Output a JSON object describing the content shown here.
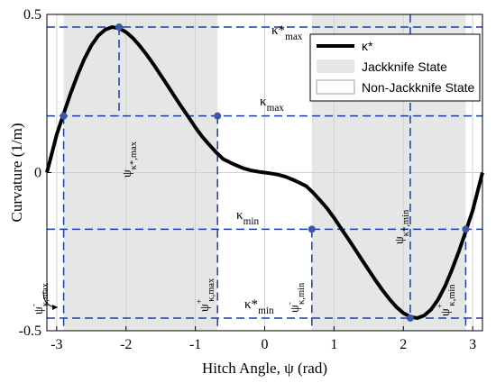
{
  "chart_data": {
    "type": "line",
    "xlabel": "Hitch Angle, ψ (rad)",
    "ylabel": "Curvature (1/m)",
    "xlim": [
      -3.14159,
      3.14159
    ],
    "ylim": [
      -0.5,
      0.5
    ],
    "xticks": [
      -3,
      -2,
      -1,
      0,
      1,
      2,
      3
    ],
    "xtick_labels": [
      "-3",
      "-2",
      "-1",
      "0",
      "1",
      "2",
      "3"
    ],
    "yticks": [
      -0.5,
      0,
      0.5
    ],
    "ytick_labels": [
      "-0.5",
      "0",
      "0.5"
    ],
    "grid": true,
    "legend_position": "top-right",
    "legend": {
      "curve": "κ*",
      "jackknife": "Jackknife State",
      "nonjackknife": "Non-Jackknife State"
    },
    "series": [
      {
        "name": "κ*",
        "x": [
          -3.14159,
          -3.0,
          -2.9,
          -2.8,
          -2.7,
          -2.6,
          -2.5,
          -2.4,
          -2.3,
          -2.2,
          -2.1,
          -2.0,
          -1.9,
          -1.8,
          -1.7,
          -1.6,
          -1.5,
          -1.4,
          -1.3,
          -1.2,
          -1.1,
          -1.0,
          -0.9,
          -0.8,
          -0.7,
          -0.6,
          -0.5,
          -0.4,
          -0.3,
          -0.2,
          -0.1,
          0.0,
          0.1,
          0.2,
          0.3,
          0.4,
          0.5,
          0.6,
          0.7,
          0.8,
          0.9,
          1.0,
          1.1,
          1.2,
          1.3,
          1.4,
          1.5,
          1.6,
          1.7,
          1.8,
          1.9,
          2.0,
          2.1,
          2.2,
          2.3,
          2.4,
          2.5,
          2.6,
          2.7,
          2.8,
          2.9,
          3.0,
          3.14159
        ],
        "y": [
          0.0,
          0.12,
          0.186,
          0.25,
          0.308,
          0.36,
          0.402,
          0.433,
          0.452,
          0.46,
          0.456,
          0.444,
          0.425,
          0.4,
          0.372,
          0.341,
          0.308,
          0.275,
          0.241,
          0.208,
          0.176,
          0.143,
          0.113,
          0.088,
          0.064,
          0.043,
          0.032,
          0.022,
          0.013,
          0.007,
          0.003,
          0.0,
          -0.003,
          -0.007,
          -0.013,
          -0.022,
          -0.032,
          -0.043,
          -0.064,
          -0.088,
          -0.113,
          -0.143,
          -0.176,
          -0.208,
          -0.241,
          -0.275,
          -0.308,
          -0.341,
          -0.372,
          -0.4,
          -0.425,
          -0.444,
          -0.456,
          -0.46,
          -0.452,
          -0.433,
          -0.402,
          -0.36,
          -0.308,
          -0.25,
          -0.186,
          -0.12,
          0.0
        ]
      }
    ],
    "jackknife_regions": [
      [
        -2.9,
        -0.68
      ],
      [
        0.68,
        2.9
      ]
    ],
    "reference_lines": {
      "kappa_star_max": 0.46,
      "kappa_max": 0.179,
      "kappa_min": -0.179,
      "kappa_star_min": -0.46,
      "psi_minus_kappa_max": -2.9,
      "psi_kappa_star_max": -2.1,
      "psi_plus_kappa_max": -0.68,
      "psi_minus_kappa_min": 0.68,
      "psi_kappa_star_min": 2.1,
      "psi_plus_kappa_min": 2.9
    },
    "annotations": {
      "kappa_star_max": {
        "base": "κ*",
        "sub": "max"
      },
      "kappa_max": {
        "base": "κ",
        "sub": "max"
      },
      "kappa_min": {
        "base": "κ",
        "sub": "min"
      },
      "kappa_star_min": {
        "base": "κ*",
        "sub": "min"
      },
      "psi_minus_kappa_max": {
        "base": "ψ",
        "sup": "-",
        "sub": "κ,max"
      },
      "psi_kappa_star_max": {
        "base": "ψ",
        "sub": "κ*,max"
      },
      "psi_plus_kappa_max": {
        "base": "ψ",
        "sup": "+",
        "sub": "κ,max"
      },
      "psi_minus_kappa_min": {
        "base": "ψ",
        "sup": "-",
        "sub": "κ,min"
      },
      "psi_kappa_star_min": {
        "base": "ψ",
        "sub": "κ*,min"
      },
      "psi_plus_kappa_min": {
        "base": "ψ",
        "sup": "+",
        "sub": "κ,min"
      }
    },
    "colors": {
      "curve": "#000000",
      "reference": "#1f3f9f",
      "jackknife_fill": "#e5e6e6",
      "grid": "#d0d0d0"
    }
  }
}
